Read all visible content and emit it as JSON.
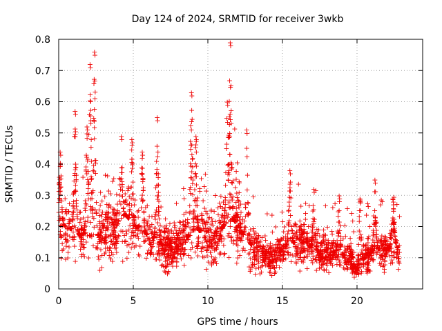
{
  "chart_data": {
    "type": "scatter",
    "title": "Day 124 of 2024, SRMTID for receiver 3wkb",
    "xlabel": "GPS time / hours",
    "ylabel": "SRMTID / TECUs",
    "xlim": [
      0,
      24.4
    ],
    "ylim": [
      0,
      0.8
    ],
    "xticks": [
      0,
      5,
      10,
      15,
      20
    ],
    "yticks": [
      0,
      0.1,
      0.2,
      0.3,
      0.4,
      0.5,
      0.6,
      0.7,
      0.8
    ],
    "xtick_labels": [
      "0",
      "5",
      "10",
      "15",
      "20"
    ],
    "ytick_labels": [
      "0",
      "0.1",
      "0.2",
      "0.3",
      "0.4",
      "0.5",
      "0.6",
      "0.7",
      "0.8"
    ],
    "grid": true,
    "marker": "+",
    "marker_color": "#ee0000",
    "series": [
      {
        "name": "SRMTID",
        "profile": {
          "x": [
            0,
            0.5,
            1,
            1.5,
            2,
            2.5,
            3,
            3.5,
            4,
            4.5,
            5,
            5.5,
            6,
            6.5,
            7,
            7.5,
            8,
            8.5,
            9,
            9.5,
            10,
            10.5,
            11,
            11.5,
            12,
            12.5,
            13,
            13.5,
            14,
            14.5,
            15,
            15.5,
            16,
            16.5,
            17,
            17.5,
            18,
            18.5,
            19,
            19.5,
            20,
            20.5,
            21,
            21.5,
            22,
            22.5,
            22.8
          ],
          "y": [
            0.22,
            0.2,
            0.19,
            0.17,
            0.2,
            0.17,
            0.18,
            0.19,
            0.21,
            0.24,
            0.2,
            0.2,
            0.17,
            0.16,
            0.14,
            0.13,
            0.14,
            0.17,
            0.16,
            0.19,
            0.16,
            0.15,
            0.2,
            0.23,
            0.21,
            0.16,
            0.14,
            0.12,
            0.1,
            0.1,
            0.13,
            0.15,
            0.15,
            0.15,
            0.13,
            0.12,
            0.12,
            0.12,
            0.11,
            0.11,
            0.06,
            0.1,
            0.12,
            0.13,
            0.12,
            0.16,
            0.12
          ]
        },
        "spikes": [
          {
            "x": 0.1,
            "y": 0.44
          },
          {
            "x": 1.1,
            "y": 0.57
          },
          {
            "x": 1.9,
            "y": 0.52
          },
          {
            "x": 2.1,
            "y": 0.72
          },
          {
            "x": 2.4,
            "y": 0.76
          },
          {
            "x": 4.2,
            "y": 0.49
          },
          {
            "x": 4.9,
            "y": 0.48
          },
          {
            "x": 5.6,
            "y": 0.44
          },
          {
            "x": 6.6,
            "y": 0.55
          },
          {
            "x": 8.9,
            "y": 0.63
          },
          {
            "x": 9.2,
            "y": 0.49
          },
          {
            "x": 11.3,
            "y": 0.6
          },
          {
            "x": 11.5,
            "y": 0.79
          },
          {
            "x": 12.6,
            "y": 0.51
          },
          {
            "x": 15.5,
            "y": 0.38
          },
          {
            "x": 17.1,
            "y": 0.32
          },
          {
            "x": 18.8,
            "y": 0.3
          },
          {
            "x": 20.2,
            "y": 0.29
          },
          {
            "x": 21.2,
            "y": 0.35
          },
          {
            "x": 22.4,
            "y": 0.29
          }
        ]
      }
    ]
  }
}
